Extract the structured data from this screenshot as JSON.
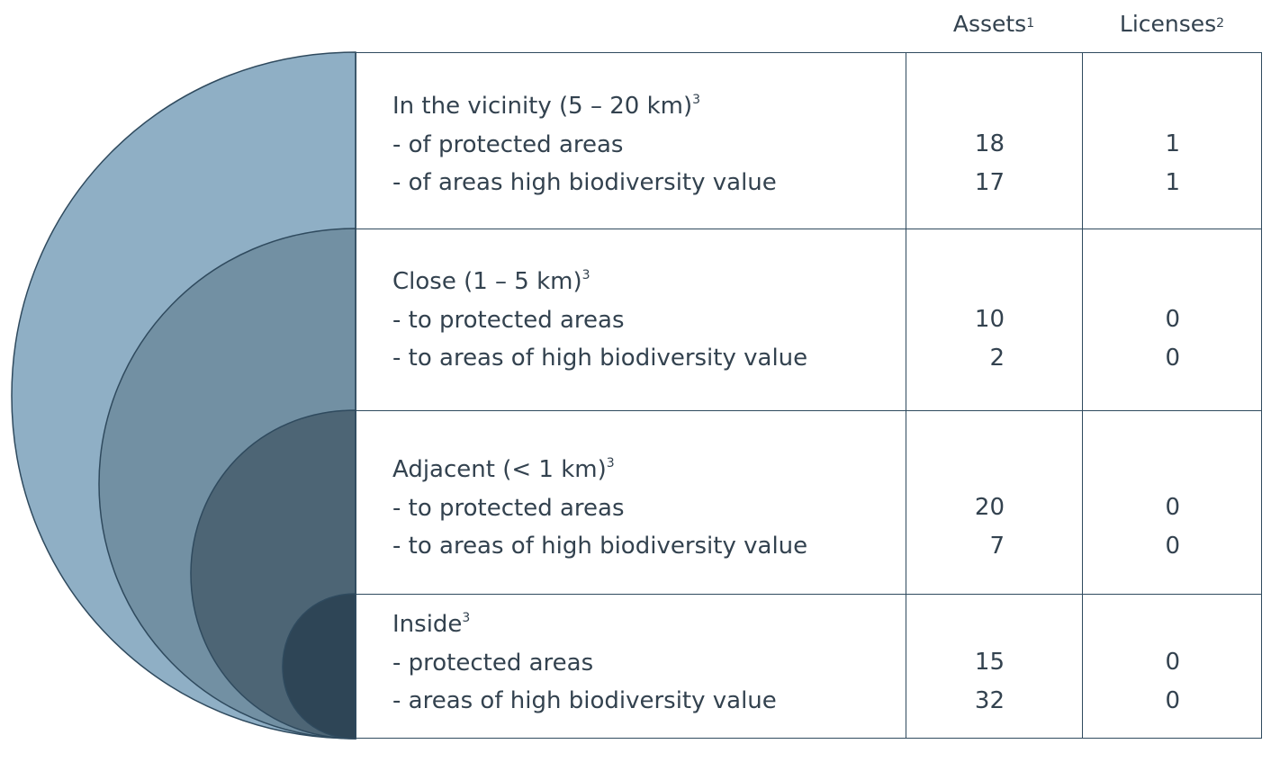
{
  "header": {
    "assets": "Assets",
    "assets_note": "1",
    "licenses": "Licenses",
    "licenses_note": "2"
  },
  "rows": [
    {
      "title": "In the vicinity (5 – 20 km)",
      "note": "3",
      "items": [
        {
          "label": "- of protected areas",
          "assets": "18",
          "licenses": "1"
        },
        {
          "label": "- of areas high biodiversity value",
          "assets": "17",
          "licenses": "1"
        }
      ]
    },
    {
      "title": "Close (1 – 5 km)",
      "note": "3",
      "items": [
        {
          "label": "- to protected areas",
          "assets": "10",
          "licenses": "0"
        },
        {
          "label": "- to areas of high biodiversity value",
          "assets": "2",
          "licenses": "0"
        }
      ]
    },
    {
      "title": "Adjacent (< 1 km)",
      "note": "3",
      "items": [
        {
          "label": "- to protected areas",
          "assets": "20",
          "licenses": "0"
        },
        {
          "label": "- to areas of high biodiversity value",
          "assets": "7",
          "licenses": "0"
        }
      ]
    },
    {
      "title": "Inside",
      "note": "3",
      "items": [
        {
          "label": "- protected areas",
          "assets": "15",
          "licenses": "0"
        },
        {
          "label": "- areas of high biodiversity value",
          "assets": "32",
          "licenses": "0"
        }
      ]
    }
  ],
  "colors": {
    "ring_vicinity": "#8fafc5",
    "ring_close": "#7290a3",
    "ring_adjacent": "#4d6575",
    "ring_inside": "#2e4556",
    "line": "#2f4a5e"
  }
}
